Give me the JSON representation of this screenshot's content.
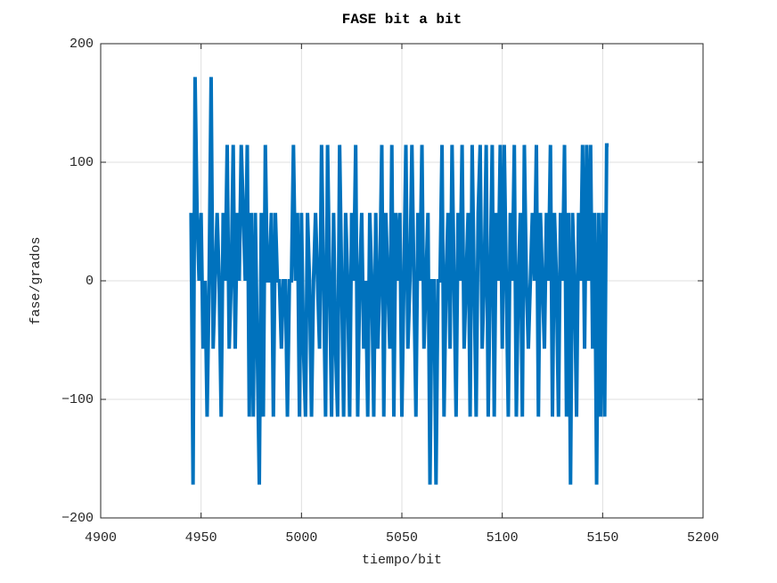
{
  "chart_data": {
    "type": "line",
    "title": "FASE bit a bit",
    "xlabel": "tiempo/bit",
    "ylabel": "fase/grados",
    "xlim": [
      4900,
      5200
    ],
    "xticks": [
      4900,
      4950,
      5000,
      5050,
      5100,
      5150,
      5200
    ],
    "ylim": [
      -200,
      200
    ],
    "yticks": [
      {
        "value": -200,
        "label": "−200"
      },
      {
        "value": -100,
        "label": "−100"
      },
      0,
      100,
      200
    ],
    "grid": true,
    "x": [
      4945,
      4946,
      4947,
      4948,
      4949,
      4950,
      4951,
      4952,
      4953,
      4954,
      4955,
      4956,
      4957,
      4958,
      4959,
      4960,
      4961,
      4962,
      4963,
      4964,
      4965,
      4966,
      4967,
      4968,
      4969,
      4970,
      4971,
      4972,
      4973,
      4974,
      4975,
      4976,
      4977,
      4978,
      4979,
      4980,
      4981,
      4982,
      4983,
      4984,
      4985,
      4986,
      4987,
      4988,
      4989,
      4990,
      4991,
      4992,
      4993,
      4994,
      4995,
      4996,
      4997,
      4998,
      4999,
      5000,
      5001,
      5002,
      5003,
      5004,
      5005,
      5006,
      5007,
      5008,
      5009,
      5010,
      5011,
      5012,
      5013,
      5014,
      5015,
      5016,
      5017,
      5018,
      5019,
      5020,
      5021,
      5022,
      5023,
      5024,
      5025,
      5026,
      5027,
      5028,
      5029,
      5030,
      5031,
      5032,
      5033,
      5034,
      5035,
      5036,
      5037,
      5038,
      5039,
      5040,
      5041,
      5042,
      5043,
      5044,
      5045,
      5046,
      5047,
      5048,
      5049,
      5050,
      5051,
      5052,
      5053,
      5054,
      5055,
      5056,
      5057,
      5058,
      5059,
      5060,
      5061,
      5062,
      5063,
      5064,
      5065,
      5066,
      5067,
      5068,
      5069,
      5070,
      5071,
      5072,
      5073,
      5074,
      5075,
      5076,
      5077,
      5078,
      5079,
      5080,
      5081,
      5082,
      5083,
      5084,
      5085,
      5086,
      5087,
      5088,
      5089,
      5090,
      5091,
      5092,
      5093,
      5094,
      5095,
      5096,
      5097,
      5098,
      5099,
      5100,
      5101,
      5102,
      5103,
      5104,
      5105,
      5106,
      5107,
      5108,
      5109,
      5110,
      5111,
      5112,
      5113,
      5114,
      5115,
      5116,
      5117,
      5118,
      5119,
      5120,
      5121,
      5122,
      5123,
      5124,
      5125,
      5126,
      5127,
      5128,
      5129,
      5130,
      5131,
      5132,
      5133,
      5134,
      5135,
      5136,
      5137,
      5138,
      5139,
      5140,
      5141,
      5142,
      5143,
      5144,
      5145,
      5146,
      5147,
      5148,
      5149,
      5150,
      5151,
      5152,
      5153
    ],
    "series": [
      {
        "color": "#0072bd",
        "values": [
          57.3,
          -171.9,
          171.9,
          57.3,
          0,
          57.3,
          -57.3,
          0,
          -114.6,
          0,
          171.9,
          -57.3,
          0,
          57.3,
          0,
          -114.6,
          57.3,
          0,
          114.6,
          -57.3,
          0,
          114.6,
          -57.3,
          57.3,
          0,
          114.6,
          57.3,
          0,
          114.6,
          -114.6,
          57.3,
          -114.6,
          57.3,
          -57.3,
          -171.9,
          57.3,
          -114.6,
          114.6,
          0,
          0,
          57.3,
          -114.6,
          57.3,
          0,
          0,
          -57.3,
          0,
          0,
          -114.6,
          0,
          0,
          114.6,
          0,
          57.3,
          -114.6,
          57.3,
          -57.3,
          -114.6,
          57.3,
          0,
          -114.6,
          0,
          57.3,
          0,
          -57.3,
          114.6,
          0,
          -114.6,
          114.6,
          0,
          -114.6,
          57.3,
          -57.3,
          -114.6,
          114.6,
          0,
          -114.6,
          57.3,
          0,
          -114.6,
          57.3,
          0,
          114.6,
          -114.6,
          0,
          57.3,
          -57.3,
          0,
          -114.6,
          57.3,
          0,
          -114.6,
          57.3,
          -57.3,
          0,
          114.6,
          -114.6,
          57.3,
          0,
          -57.3,
          114.6,
          -114.6,
          57.3,
          0,
          57.3,
          -114.6,
          0,
          114.6,
          -57.3,
          0,
          114.6,
          0,
          -114.6,
          57.3,
          0,
          114.6,
          -57.3,
          0,
          57.3,
          -171.9,
          0,
          0,
          -171.9,
          0,
          0,
          114.6,
          -114.6,
          0,
          57.3,
          -57.3,
          114.6,
          0,
          -114.6,
          57.3,
          0,
          114.6,
          -57.3,
          0,
          57.3,
          -114.6,
          114.6,
          0,
          -114.6,
          57.3,
          114.6,
          -57.3,
          0,
          114.6,
          -114.6,
          0,
          114.6,
          -114.6,
          57.3,
          0,
          114.6,
          -57.3,
          114.6,
          0,
          -114.6,
          57.3,
          0,
          114.6,
          -114.6,
          0,
          57.3,
          -114.6,
          114.6,
          0,
          -57.3,
          0,
          57.3,
          0,
          114.6,
          -114.6,
          57.3,
          0,
          -57.3,
          57.3,
          0,
          114.6,
          -114.6,
          57.3,
          0,
          -114.6,
          57.3,
          0,
          114.6,
          -114.6,
          57.3,
          -171.9,
          57.3,
          0,
          -114.6,
          57.3,
          0,
          114.6,
          -57.3,
          114.6,
          0,
          114.6,
          -57.3,
          57.3,
          -171.9,
          57.3,
          -114.6,
          57.3,
          -114.6,
          114.6,
          114.6
        ]
      }
    ]
  }
}
